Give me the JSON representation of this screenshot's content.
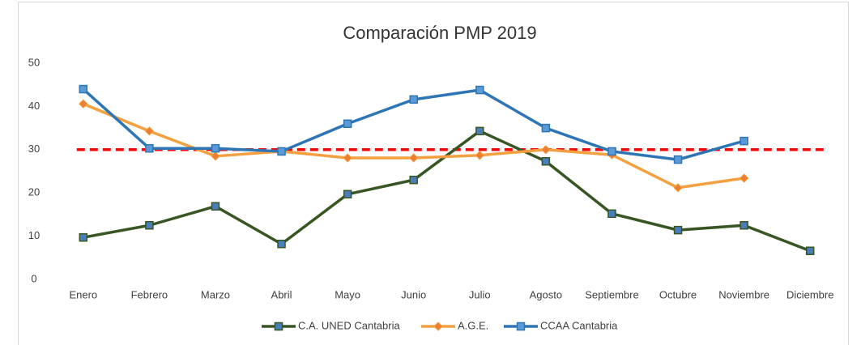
{
  "chart_data": {
    "type": "line",
    "title": "Comparación PMP 2019",
    "categories": [
      "Enero",
      "Febrero",
      "Marzo",
      "Abril",
      "Mayo",
      "Junio",
      "Julio",
      "Agosto",
      "Septiembre",
      "Octubre",
      "Noviembre",
      "Diciembre"
    ],
    "series": [
      {
        "name": "C.A. UNED Cantabria",
        "color": "#375623",
        "marker": "square",
        "marker_color": "#4a7ebb",
        "values": [
          9.7,
          12.5,
          16.9,
          8.2,
          19.7,
          23.0,
          34.3,
          27.3,
          15.2,
          11.4,
          12.5,
          6.6
        ]
      },
      {
        "name": "A.G.E.",
        "color": "#f4a040",
        "marker": "diamond",
        "marker_color": "#ed7d31",
        "values": [
          40.6,
          34.3,
          28.5,
          29.6,
          28.1,
          28.1,
          28.7,
          30.0,
          28.8,
          21.2,
          23.4,
          null
        ]
      },
      {
        "name": "CCAA Cantabria",
        "color": "#2e75b6",
        "marker": "square",
        "marker_color": "#5b9bd5",
        "values": [
          44.0,
          30.3,
          30.3,
          29.6,
          36.0,
          41.6,
          43.8,
          35.0,
          29.6,
          27.7,
          32.0,
          null
        ]
      }
    ],
    "reference_line": {
      "value": 30,
      "color": "#ff0000"
    },
    "ylim": [
      0,
      50
    ],
    "yticks": [
      0,
      10,
      20,
      30,
      40,
      50
    ],
    "grid": false,
    "legend": "bottom"
  }
}
